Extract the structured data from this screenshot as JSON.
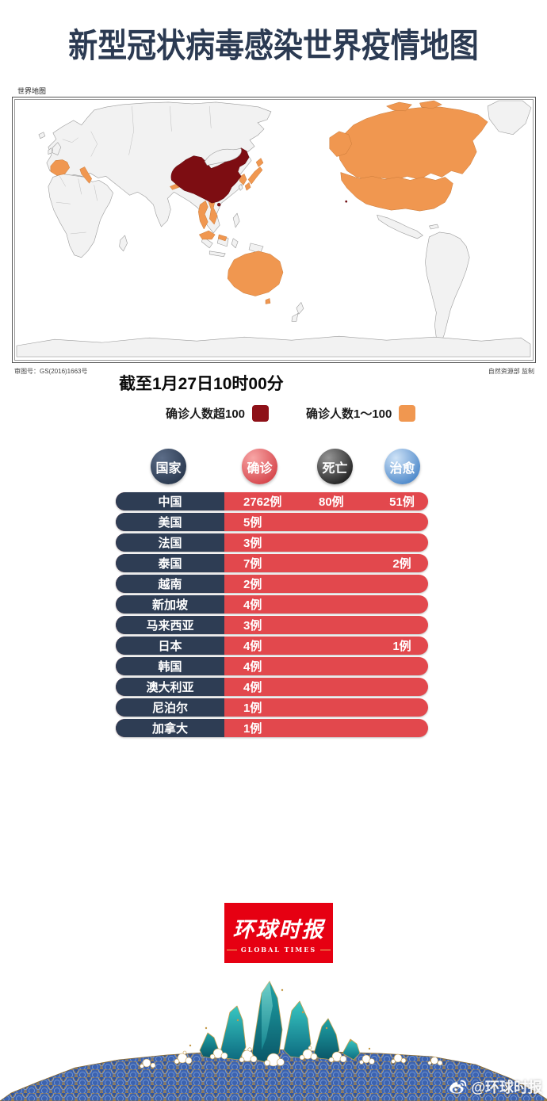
{
  "title": "新型冠状病毒感染世界疫情地图",
  "map": {
    "corner_label": "世界地图",
    "approval_number": "审图号：GS(2016)1663号",
    "producer": "自然资源部 监制",
    "timestamp": "截至1月27日10时00分",
    "legend": [
      {
        "label": "确诊人数超100",
        "color": "#8e1118"
      },
      {
        "label": "确诊人数1～100",
        "color": "#f09750"
      }
    ]
  },
  "table": {
    "headers": [
      {
        "label": "国家"
      },
      {
        "label": "确诊"
      },
      {
        "label": "死亡"
      },
      {
        "label": "治愈"
      }
    ],
    "rows": [
      {
        "country": "中国",
        "confirmed": "2762例",
        "deaths": "80例",
        "cured": "51例"
      },
      {
        "country": "美国",
        "confirmed": "5例",
        "deaths": "",
        "cured": ""
      },
      {
        "country": "法国",
        "confirmed": "3例",
        "deaths": "",
        "cured": ""
      },
      {
        "country": "泰国",
        "confirmed": "7例",
        "deaths": "",
        "cured": "2例"
      },
      {
        "country": "越南",
        "confirmed": "2例",
        "deaths": "",
        "cured": ""
      },
      {
        "country": "新加坡",
        "confirmed": "4例",
        "deaths": "",
        "cured": ""
      },
      {
        "country": "马来西亚",
        "confirmed": "3例",
        "deaths": "",
        "cured": ""
      },
      {
        "country": "日本",
        "confirmed": "4例",
        "deaths": "",
        "cured": "1例"
      },
      {
        "country": "韩国",
        "confirmed": "4例",
        "deaths": "",
        "cured": ""
      },
      {
        "country": "澳大利亚",
        "confirmed": "4例",
        "deaths": "",
        "cured": ""
      },
      {
        "country": "尼泊尔",
        "confirmed": "1例",
        "deaths": "",
        "cured": ""
      },
      {
        "country": "加拿大",
        "confirmed": "1例",
        "deaths": "",
        "cured": ""
      }
    ]
  },
  "logo": {
    "cn": "环球时报",
    "en": "GLOBAL TIMES"
  },
  "watermark": "@环球时报",
  "colors": {
    "title_navy": "#2b3a52",
    "row_navy": "#2e3d54",
    "row_red": "#e2484d",
    "map_over100": "#7d0d12",
    "map_1to100": "#f09750",
    "logo_red": "#e60012"
  },
  "chart_data": {
    "type": "table",
    "title": "新型冠状病毒感染世界疫情地图",
    "as_of": "截至1月27日10时00分",
    "columns": [
      "国家",
      "确诊",
      "死亡",
      "治愈"
    ],
    "rows": [
      [
        "中国",
        "2762例",
        "80例",
        "51例"
      ],
      [
        "美国",
        "5例",
        "",
        ""
      ],
      [
        "法国",
        "3例",
        "",
        ""
      ],
      [
        "泰国",
        "7例",
        "",
        "2例"
      ],
      [
        "越南",
        "2例",
        "",
        ""
      ],
      [
        "新加坡",
        "4例",
        "",
        ""
      ],
      [
        "马来西亚",
        "3例",
        "",
        ""
      ],
      [
        "日本",
        "4例",
        "",
        "1例"
      ],
      [
        "韩国",
        "4例",
        "",
        ""
      ],
      [
        "澳大利亚",
        "4例",
        "",
        ""
      ],
      [
        "尼泊尔",
        "1例",
        "",
        ""
      ],
      [
        "加拿大",
        "1例",
        "",
        ""
      ]
    ],
    "map_legend": [
      {
        "label": "确诊人数超100",
        "color": "#8e1118"
      },
      {
        "label": "确诊人数1～100",
        "color": "#f09750"
      }
    ]
  }
}
